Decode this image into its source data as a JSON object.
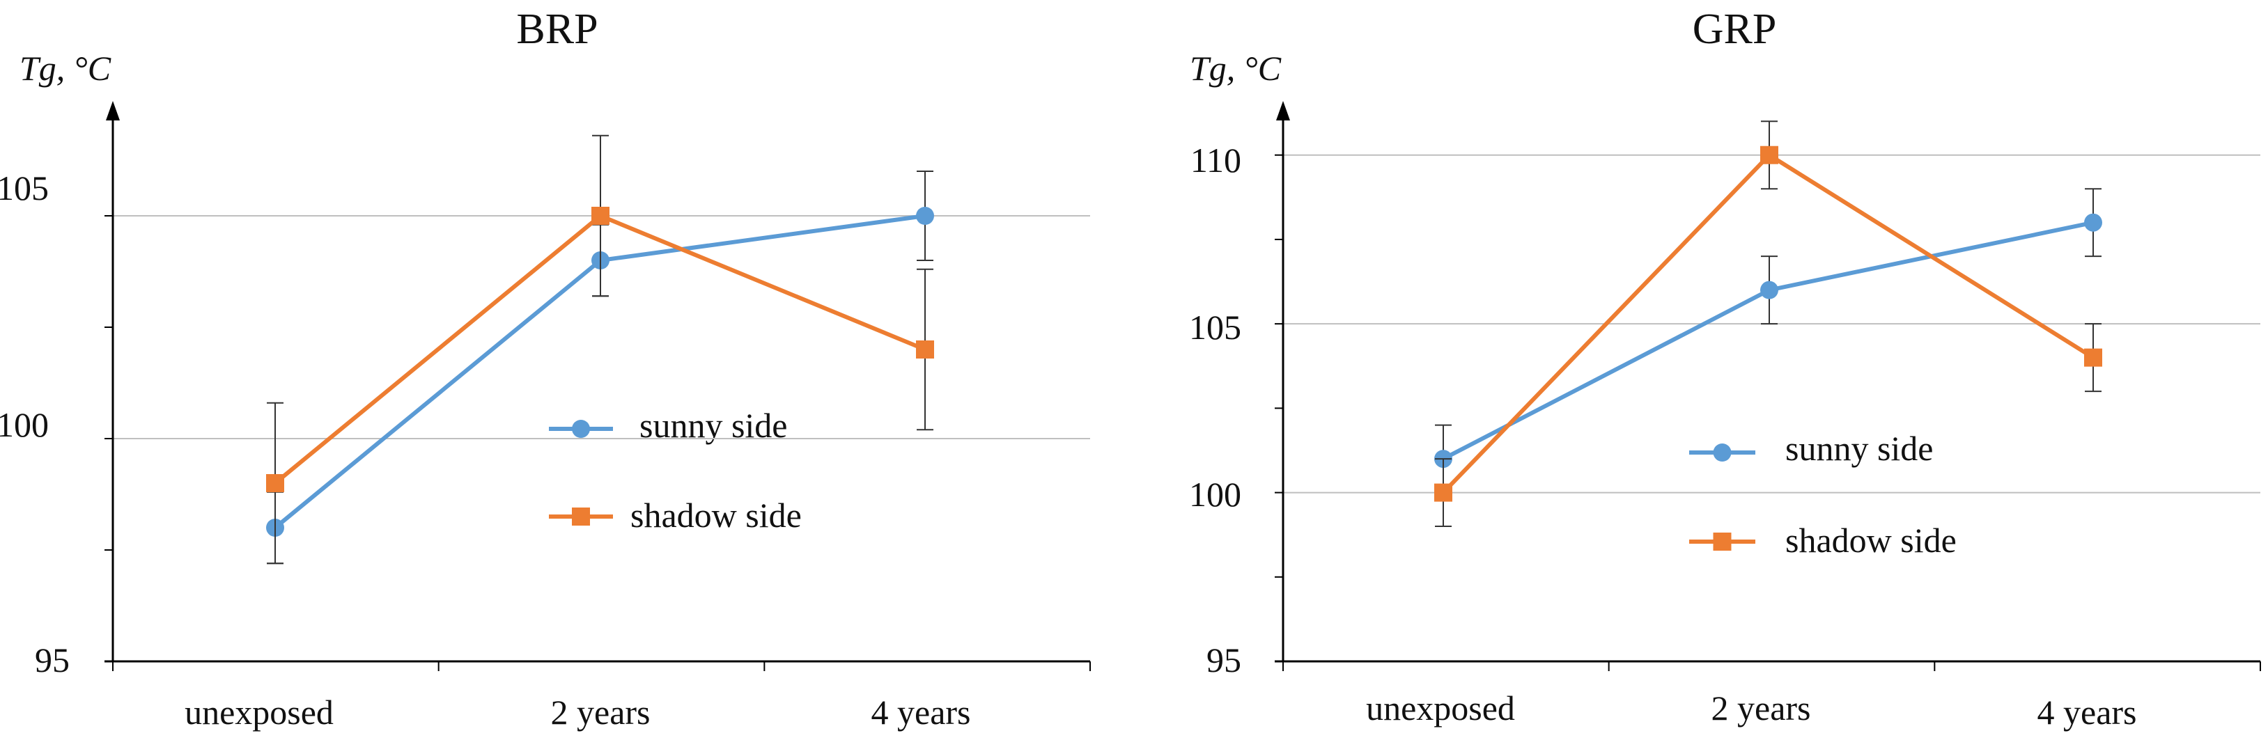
{
  "colors": {
    "sunny": "#5B9BD5",
    "shadow": "#ED7D31",
    "axis": "#000000",
    "grid": "#BFBFBF",
    "error": "#333333"
  },
  "chart_data": [
    {
      "type": "line",
      "title": "BRP",
      "ylabel": "Tg, °C",
      "xlabel": "",
      "categories": [
        "unexposed",
        "2 years",
        "4 years"
      ],
      "ylim": [
        95,
        107.5
      ],
      "yticks": [
        "95",
        "100",
        "105"
      ],
      "series": [
        {
          "name": "sunny side",
          "marker": "circle",
          "values": [
            98,
            104,
            105
          ],
          "errors": [
            0.8,
            0.8,
            1.0
          ]
        },
        {
          "name": "shadow side",
          "marker": "square",
          "values": [
            99,
            105,
            102
          ],
          "errors": [
            1.8,
            1.8,
            1.8
          ]
        }
      ],
      "grid": "horizontal"
    },
    {
      "type": "line",
      "title": "GRP",
      "ylabel": "Tg, °C",
      "xlabel": "",
      "categories": [
        "unexposed",
        "2 years",
        "4 years"
      ],
      "ylim": [
        95,
        111.5
      ],
      "yticks": [
        "95",
        "100",
        "105",
        "110"
      ],
      "series": [
        {
          "name": "sunny side",
          "marker": "circle",
          "values": [
            101,
            106,
            108
          ],
          "errors": [
            1,
            1,
            1
          ]
        },
        {
          "name": "shadow side",
          "marker": "square",
          "values": [
            100,
            110,
            104
          ],
          "errors": [
            1,
            1,
            1
          ]
        }
      ],
      "grid": "horizontal"
    }
  ]
}
